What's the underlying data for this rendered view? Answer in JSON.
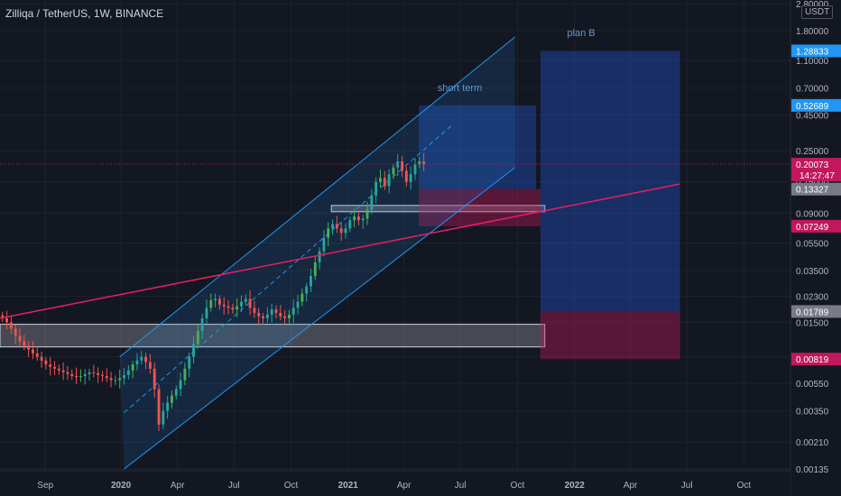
{
  "header": {
    "title": "Zilliqa / TetherUS, 1W, BINANCE",
    "currency": "USDT"
  },
  "colors": {
    "background": "#131722",
    "grid": "#1e222d",
    "up": "#26a69a",
    "up_alt": "#4caf50",
    "down": "#ef5350",
    "channel": "#2196f3",
    "trendline": "#e91e63",
    "box_blue": "#2b5c8f",
    "box_red": "#880e4f",
    "axis_text": "#b2b5be"
  },
  "chart_data": {
    "type": "candlestick",
    "scale": "log",
    "ylim": [
      0.00135,
      2.8
    ],
    "y_ticks": [
      0.00135,
      0.0021,
      0.0035,
      0.0055,
      0.0085,
      0.015,
      0.023,
      0.035,
      0.055,
      0.09,
      0.15,
      0.25,
      0.45,
      0.7,
      1.1,
      1.8,
      2.8
    ],
    "y_tick_labels": [
      "0.00135",
      "0.00210",
      "0.00350",
      "0.00550",
      "0.00850",
      "0.01500",
      "0.02300",
      "0.03500",
      "0.05500",
      "0.09000",
      "0.15000",
      "0.25000",
      "0.45000",
      "0.70000",
      "1.10000",
      "1.80000",
      "2.80000"
    ],
    "x_labels": [
      "Sep",
      "2020",
      "Apr",
      "Jul",
      "Oct",
      "2021",
      "Apr",
      "Jul",
      "Oct",
      "2022",
      "Apr",
      "Jul",
      "Oct"
    ],
    "x_label_positions": [
      "2019-09-01",
      "2020-01-01",
      "2020-04-01",
      "2020-07-01",
      "2020-10-01",
      "2021-01-01",
      "2021-04-01",
      "2021-07-01",
      "2021-10-01",
      "2022-01-01",
      "2022-04-01",
      "2022-07-01",
      "2022-10-01"
    ],
    "x_start": "2019-06-20",
    "x_end": "2022-12-15",
    "price_labels": [
      {
        "value": 1.28833,
        "text": "1.28833",
        "color": "#2196f3"
      },
      {
        "value": 0.52689,
        "text": "0.52689",
        "color": "#2196f3"
      },
      {
        "value": 0.20073,
        "text": "0.20073",
        "sub": "14:27:47",
        "color": "#c2185b"
      },
      {
        "value": 0.13327,
        "text": "0.13327",
        "color": "#787b86"
      },
      {
        "value": 0.07249,
        "text": "0.07249",
        "color": "#c2185b"
      },
      {
        "value": 0.01789,
        "text": "0.01789",
        "color": "#787b86"
      },
      {
        "value": 0.00819,
        "text": "0.00819",
        "color": "#c2185b"
      }
    ],
    "candles_weekly_close": [
      0.016,
      0.015,
      0.0135,
      0.012,
      0.011,
      0.0102,
      0.0096,
      0.009,
      0.0085,
      0.008,
      0.0075,
      0.0072,
      0.007,
      0.0068,
      0.0066,
      0.0064,
      0.0062,
      0.0061,
      0.0062,
      0.0064,
      0.0066,
      0.0065,
      0.0063,
      0.0062,
      0.006,
      0.0058,
      0.0058,
      0.006,
      0.0063,
      0.0068,
      0.0075,
      0.008,
      0.0085,
      0.0078,
      0.007,
      0.005,
      0.0028,
      0.0035,
      0.004,
      0.0045,
      0.005,
      0.0058,
      0.007,
      0.0085,
      0.0105,
      0.013,
      0.016,
      0.019,
      0.0215,
      0.022,
      0.02,
      0.0195,
      0.019,
      0.0185,
      0.0195,
      0.021,
      0.022,
      0.019,
      0.0175,
      0.0165,
      0.016,
      0.017,
      0.0185,
      0.0175,
      0.0165,
      0.016,
      0.017,
      0.019,
      0.021,
      0.024,
      0.027,
      0.032,
      0.04,
      0.048,
      0.06,
      0.07,
      0.075,
      0.07,
      0.065,
      0.07,
      0.08,
      0.085,
      0.08,
      0.082,
      0.095,
      0.12,
      0.15,
      0.16,
      0.14,
      0.17,
      0.19,
      0.21,
      0.18,
      0.15,
      0.17,
      0.2,
      0.21,
      0.2007
    ],
    "weekly_open_date": "2019-06-24",
    "channel": {
      "upper": [
        [
          "2019-12-30",
          0.0085
        ],
        [
          "2021-09-27",
          1.62
        ]
      ],
      "lower": [
        [
          "2020-01-06",
          0.00135
        ],
        [
          "2021-09-27",
          0.19
        ]
      ],
      "mid": [
        [
          "2020-01-06",
          0.0034
        ],
        [
          "2021-06-20",
          0.39
        ]
      ]
    },
    "trendline": [
      [
        "2019-06-20",
        0.016
      ],
      [
        "2022-06-20",
        0.145
      ]
    ],
    "zones": [
      {
        "name": "long-term-support",
        "from": "2019-06-20",
        "to": "2021-11-14",
        "top": 0.0145,
        "bottom": 0.01
      },
      {
        "name": "short-term-support",
        "from": "2020-12-05",
        "to": "2021-11-14",
        "top": 0.102,
        "bottom": 0.092
      }
    ],
    "short_term": {
      "label": "short term",
      "target": {
        "from": "2021-04-25",
        "to": "2021-10-31",
        "top": 0.52689,
        "bottom": 0.13327
      },
      "stop": {
        "from": "2021-04-25",
        "to": "2021-11-07",
        "top": 0.13327,
        "bottom": 0.07249
      }
    },
    "plan_b": {
      "label": "plan B",
      "target": {
        "from": "2021-11-07",
        "to": "2022-06-20",
        "top": 1.28833,
        "bottom": 0.01789
      },
      "stop": {
        "from": "2021-11-07",
        "to": "2022-06-20",
        "top": 0.01789,
        "bottom": 0.00819
      }
    }
  }
}
